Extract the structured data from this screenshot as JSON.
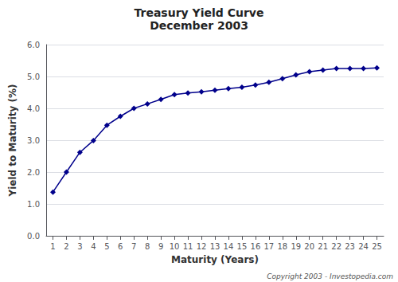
{
  "chart_data": {
    "type": "line",
    "title": "Treasury Yield Curve",
    "subtitle": "December 2003",
    "xlabel": "Maturity (Years)",
    "ylabel": "Yield to Maturity (%)",
    "annotation": "Copyright 2003 - Investopedia.com",
    "x": [
      1,
      2,
      3,
      4,
      5,
      6,
      7,
      8,
      9,
      10,
      11,
      12,
      13,
      14,
      15,
      16,
      17,
      18,
      19,
      20,
      21,
      22,
      23,
      24,
      25
    ],
    "values": [
      1.37,
      2.0,
      2.62,
      2.99,
      3.47,
      3.75,
      4.0,
      4.14,
      4.28,
      4.43,
      4.48,
      4.52,
      4.57,
      4.62,
      4.66,
      4.73,
      4.82,
      4.93,
      5.05,
      5.15,
      5.2,
      5.25,
      5.25,
      5.25,
      5.27
    ],
    "color": "#00008B",
    "marker": "diamond",
    "xlim": [
      0.5,
      25.5
    ],
    "xticks": [
      1,
      2,
      3,
      4,
      5,
      6,
      7,
      8,
      9,
      10,
      11,
      12,
      13,
      14,
      15,
      16,
      17,
      18,
      19,
      20,
      21,
      22,
      23,
      24,
      25
    ],
    "ylim": [
      0.0,
      6.0
    ],
    "yticks": [
      {
        "value": 0,
        "label": "0.0"
      },
      {
        "value": 1,
        "label": "1.0"
      },
      {
        "value": 2,
        "label": "2.0"
      },
      {
        "value": 3,
        "label": "3.0"
      },
      {
        "value": 4,
        "label": "4.0"
      },
      {
        "value": 5,
        "label": "5.0"
      },
      {
        "value": 6,
        "label": "6.0"
      }
    ],
    "grid": "y"
  }
}
